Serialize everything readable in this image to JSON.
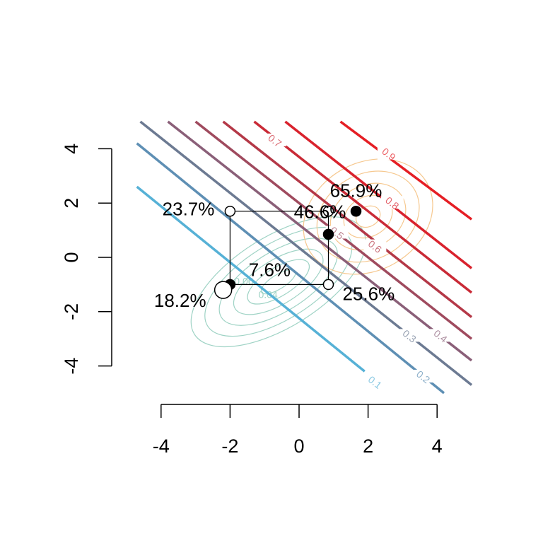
{
  "chart_data": {
    "type": "scatter",
    "title": "",
    "xlabel": "",
    "ylabel": "",
    "xlim": [
      -4.6,
      5.0
    ],
    "ylim": [
      -5.0,
      5.0
    ],
    "x_ticks": [
      -4,
      -2,
      0,
      2,
      4
    ],
    "y_ticks": [
      -4,
      -2,
      0,
      2,
      4
    ],
    "x_tick_labels": [
      "-4",
      "-2",
      "0",
      "2",
      "4"
    ],
    "y_tick_labels": [
      "-4",
      "-2",
      "0",
      "2",
      "4"
    ],
    "grid": false,
    "probability_contours": {
      "description_levels": [
        0.1,
        0.2,
        0.3,
        0.4,
        0.5,
        0.6,
        0.7,
        0.8,
        0.9
      ],
      "lines": [
        {
          "level": 0.1,
          "label": "0.1",
          "color": "#56b1d6",
          "from": [
            -4.7,
            2.6
          ],
          "to": [
            1.9,
            -4.2
          ],
          "label_at": [
            2.2,
            -4.6
          ]
        },
        {
          "level": 0.2,
          "label": "0.2",
          "color": "#5e8fb4",
          "from": [
            -4.7,
            4.2
          ],
          "to": [
            4.2,
            -5.0
          ],
          "label_at": [
            3.6,
            -4.4
          ]
        },
        {
          "level": 0.3,
          "label": "0.3",
          "color": "#6c7a92",
          "from": [
            -4.6,
            5.0
          ],
          "to": [
            5.0,
            -4.7
          ],
          "label_at": [
            3.2,
            -2.9
          ]
        },
        {
          "level": 0.4,
          "label": "0.4",
          "color": "#8a5f78",
          "from": [
            -3.8,
            5.0
          ],
          "to": [
            5.0,
            -3.8
          ],
          "label_at": [
            4.1,
            -2.9
          ]
        },
        {
          "level": 0.5,
          "label": "0.5",
          "color": "#9f4a5e",
          "from": [
            -3.0,
            5.0
          ],
          "to": [
            5.0,
            -3.0
          ],
          "label_at": [
            1.1,
            0.9
          ]
        },
        {
          "level": 0.6,
          "label": "0.6",
          "color": "#b43847",
          "from": [
            -2.2,
            5.0
          ],
          "to": [
            5.0,
            -2.2
          ],
          "label_at": [
            2.2,
            0.4
          ]
        },
        {
          "level": 0.7,
          "label": "0.7",
          "color": "#c92a36",
          "from": [
            -1.3,
            5.0
          ],
          "to": [
            5.0,
            -1.3
          ],
          "label_at": [
            -0.7,
            4.3
          ]
        },
        {
          "level": 0.8,
          "label": "0.8",
          "color": "#d9222d",
          "from": [
            -0.4,
            5.0
          ],
          "to": [
            5.0,
            -0.4
          ],
          "label_at": [
            2.7,
            2.0
          ]
        },
        {
          "level": 0.9,
          "label": "0.9",
          "color": "#e51e24",
          "from": [
            1.2,
            5.0
          ],
          "to": [
            5.0,
            1.4
          ],
          "label_at": [
            2.6,
            3.8
          ]
        }
      ]
    },
    "density_contours": [
      {
        "group": "low",
        "color": "#9fd3c5",
        "center": [
          -0.6,
          -0.9
        ],
        "labels": [
          "0.04",
          "0.06"
        ]
      },
      {
        "group": "high",
        "color": "#f6c88f",
        "center": [
          2.0,
          1.5
        ],
        "labels": []
      }
    ],
    "reference_box": {
      "x_range": [
        -2.0,
        0.85
      ],
      "y_range": [
        -1.0,
        1.7
      ]
    },
    "points": [
      {
        "x": -2.0,
        "y": 1.7,
        "filled": false,
        "label": "23.7%",
        "label_color": "#000000"
      },
      {
        "x": 0.85,
        "y": 1.7,
        "filled": false,
        "label": "46.6%",
        "label_color": "#000000"
      },
      {
        "x": 1.65,
        "y": 1.7,
        "filled": true,
        "label": "65.9%",
        "label_color": "#000000"
      },
      {
        "x": 0.85,
        "y": 0.85,
        "filled": true,
        "label": "",
        "label_color": "#000000"
      },
      {
        "x": 0.85,
        "y": -1.0,
        "filled": false,
        "label": "25.6%",
        "label_color": "#000000"
      },
      {
        "x": -2.0,
        "y": -1.0,
        "filled": true,
        "label": "7.6%",
        "label_color": "#000000"
      },
      {
        "x": -2.2,
        "y": -1.2,
        "filled": false,
        "big": true,
        "label": "18.2%",
        "label_color": "#000080"
      }
    ]
  }
}
